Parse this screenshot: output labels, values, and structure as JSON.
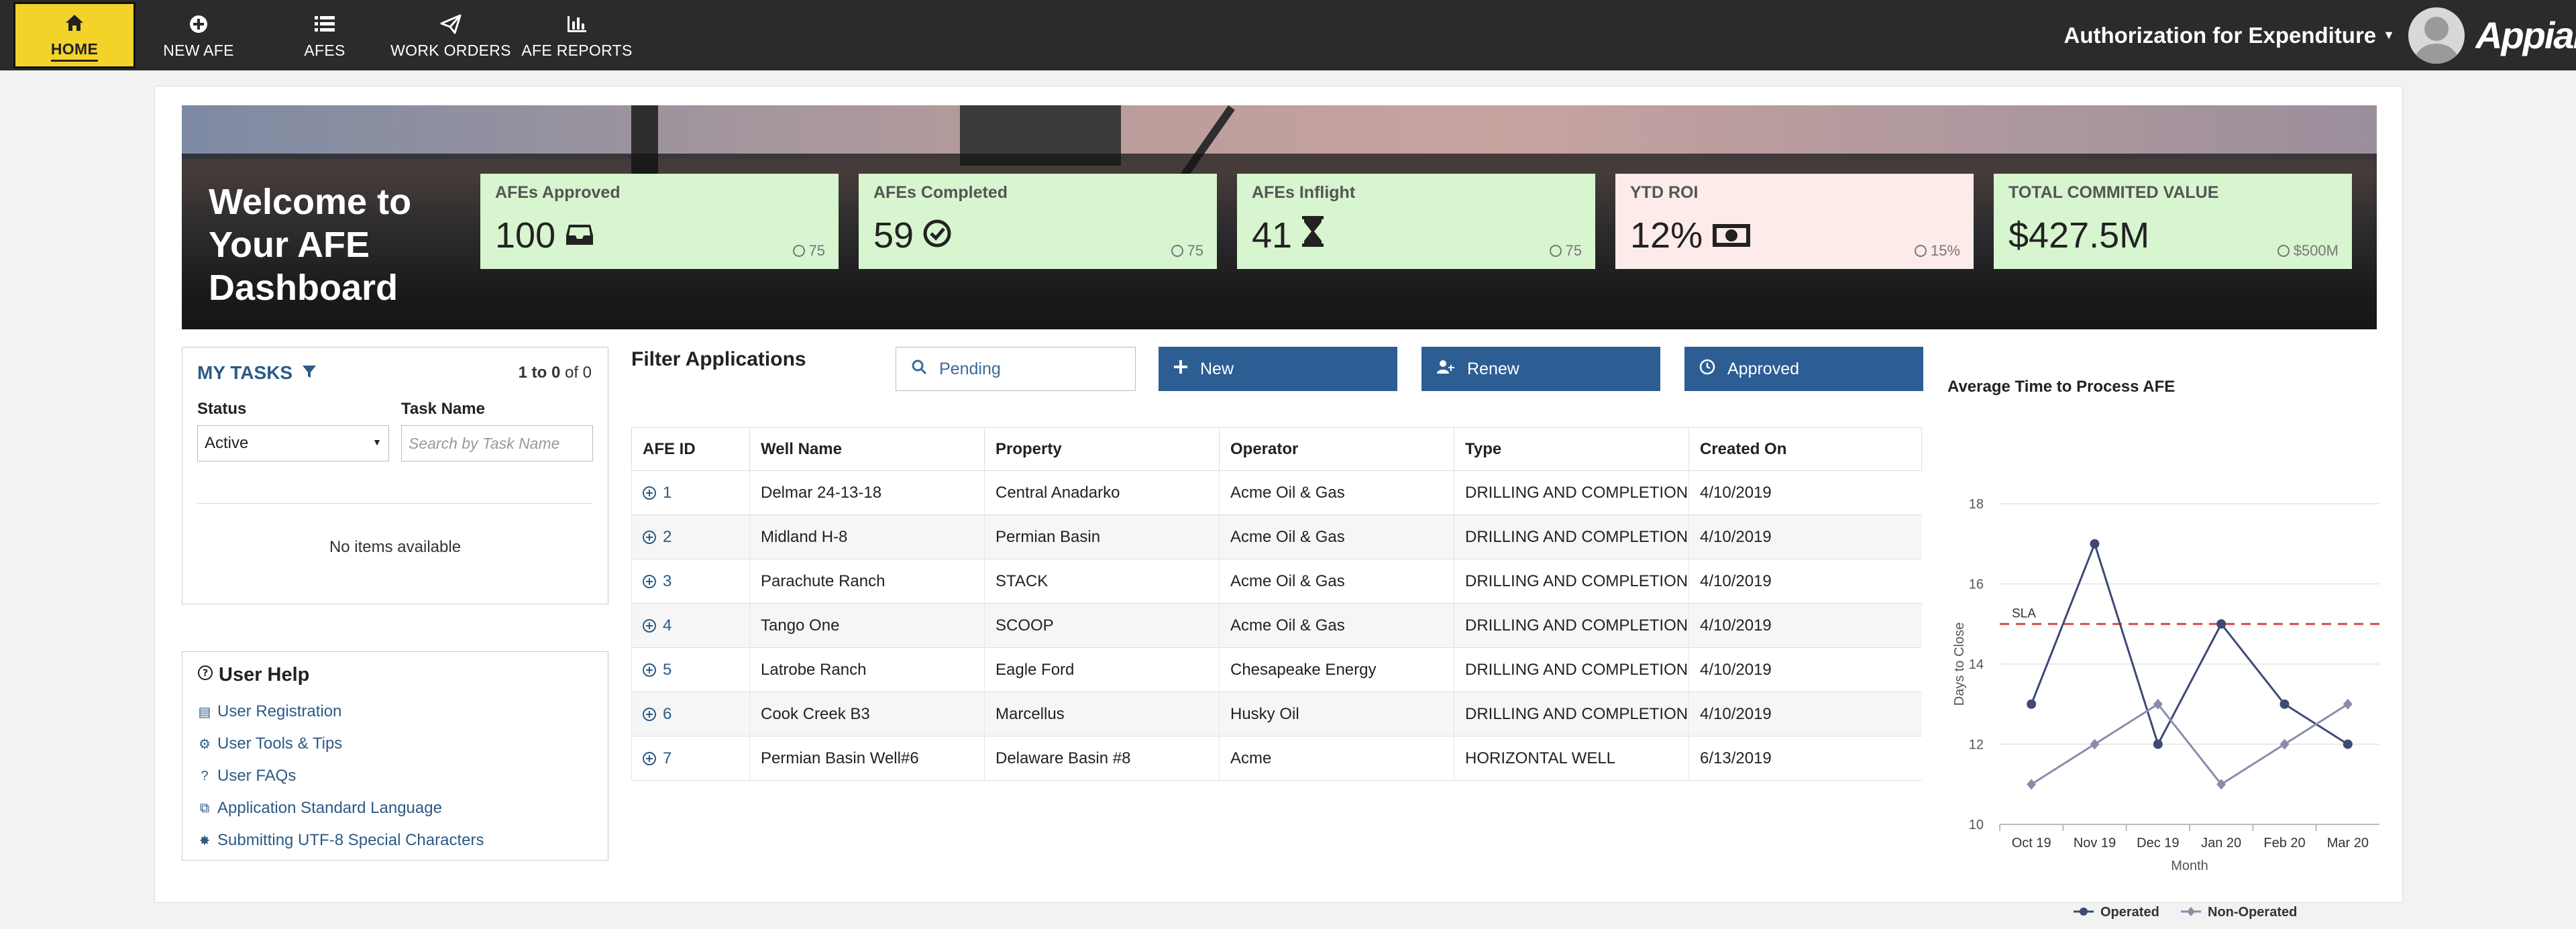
{
  "nav": {
    "items": [
      {
        "label": "HOME",
        "icon": "home-icon"
      },
      {
        "label": "NEW AFE",
        "icon": "plus-circle-icon"
      },
      {
        "label": "AFES",
        "icon": "list-icon"
      },
      {
        "label": "WORK ORDERS",
        "icon": "paper-plane-icon"
      },
      {
        "label": "AFE REPORTS",
        "icon": "bar-chart-icon"
      }
    ],
    "site_name": "Authorization for Expenditure",
    "brand": "Appian"
  },
  "hero": {
    "welcome": "Welcome to Your AFE Dashboard",
    "kpis": [
      {
        "label": "AFEs Approved",
        "value": "100",
        "icon": "inbox-icon",
        "target": "75",
        "color": "#d7f5cf"
      },
      {
        "label": "AFEs Completed",
        "value": "59",
        "icon": "check-circle-icon",
        "target": "75",
        "color": "#d7f5cf"
      },
      {
        "label": "AFEs Inflight",
        "value": "41",
        "icon": "hourglass-icon",
        "target": "75",
        "color": "#d7f5cf"
      },
      {
        "label": "YTD ROI",
        "value": "12%",
        "icon": "money-icon",
        "target": "15%",
        "color": "#fdebea"
      },
      {
        "label": "TOTAL COMMITED VALUE",
        "value": "$427.5M",
        "icon": "",
        "target": "$500M",
        "color": "#d7f5cf"
      }
    ]
  },
  "tasks": {
    "title": "MY TASKS",
    "pager_start": "1",
    "pager_mid": " to ",
    "pager_end": "0",
    "pager_suffix": " of 0",
    "status_label": "Status",
    "status_value": "Active",
    "task_name_label": "Task Name",
    "task_name_placeholder": "Search by Task Name",
    "empty": "No items available"
  },
  "help": {
    "title": "User Help",
    "links": [
      {
        "label": "User Registration",
        "icon": "document-icon"
      },
      {
        "label": "User Tools & Tips",
        "icon": "wrench-icon"
      },
      {
        "label": "User FAQs",
        "icon": "question-icon"
      },
      {
        "label": "Application Standard Language",
        "icon": "copy-icon"
      },
      {
        "label": "Submitting UTF-8 Special Characters",
        "icon": "gear-icon"
      }
    ]
  },
  "filter": {
    "title": "Filter Applications",
    "pending": "Pending",
    "buttons": [
      "New",
      "Renew",
      "Approved"
    ]
  },
  "table": {
    "headers": [
      "AFE ID",
      "Well Name",
      "Property",
      "Operator",
      "Type",
      "Created On"
    ],
    "rows": [
      [
        "1",
        "Delmar 24-13-18",
        "Central Anadarko",
        "Acme Oil & Gas",
        "DRILLING AND COMPLETION",
        "4/10/2019"
      ],
      [
        "2",
        "Midland H-8",
        "Permian Basin",
        "Acme Oil & Gas",
        "DRILLING AND COMPLETION",
        "4/10/2019"
      ],
      [
        "3",
        "Parachute Ranch",
        "STACK",
        "Acme Oil & Gas",
        "DRILLING AND COMPLETION",
        "4/10/2019"
      ],
      [
        "4",
        "Tango One",
        "SCOOP",
        "Acme Oil & Gas",
        "DRILLING AND COMPLETION",
        "4/10/2019"
      ],
      [
        "5",
        "Latrobe Ranch",
        "Eagle Ford",
        "Chesapeake Energy",
        "DRILLING AND COMPLETION",
        "4/10/2019"
      ],
      [
        "6",
        "Cook Creek B3",
        "Marcellus",
        "Husky Oil",
        "DRILLING AND COMPLETION",
        "4/10/2019"
      ],
      [
        "7",
        "Permian Basin Well#6",
        "Delaware Basin #8",
        "Acme",
        "HORIZONTAL WELL",
        "6/13/2019"
      ]
    ]
  },
  "chart_data": {
    "type": "line",
    "title": "Average Time to Process AFE",
    "xlabel": "Month",
    "ylabel": "Days to Close",
    "categories": [
      "Oct 19",
      "Nov 19",
      "Dec 19",
      "Jan 20",
      "Feb 20",
      "Mar 20"
    ],
    "ylim": [
      10,
      18
    ],
    "yticks": [
      10,
      12,
      14,
      16,
      18
    ],
    "grid": true,
    "legend": "bottom",
    "sla": {
      "label": "SLA",
      "value": 15,
      "color": "#e04646"
    },
    "series": [
      {
        "name": "Operated",
        "values": [
          13,
          17,
          12,
          15,
          13,
          12
        ],
        "color": "#3d4a74"
      },
      {
        "name": "Non-Operated",
        "values": [
          11,
          12,
          13,
          11,
          12,
          13
        ],
        "color": "#8a8cab"
      }
    ]
  }
}
